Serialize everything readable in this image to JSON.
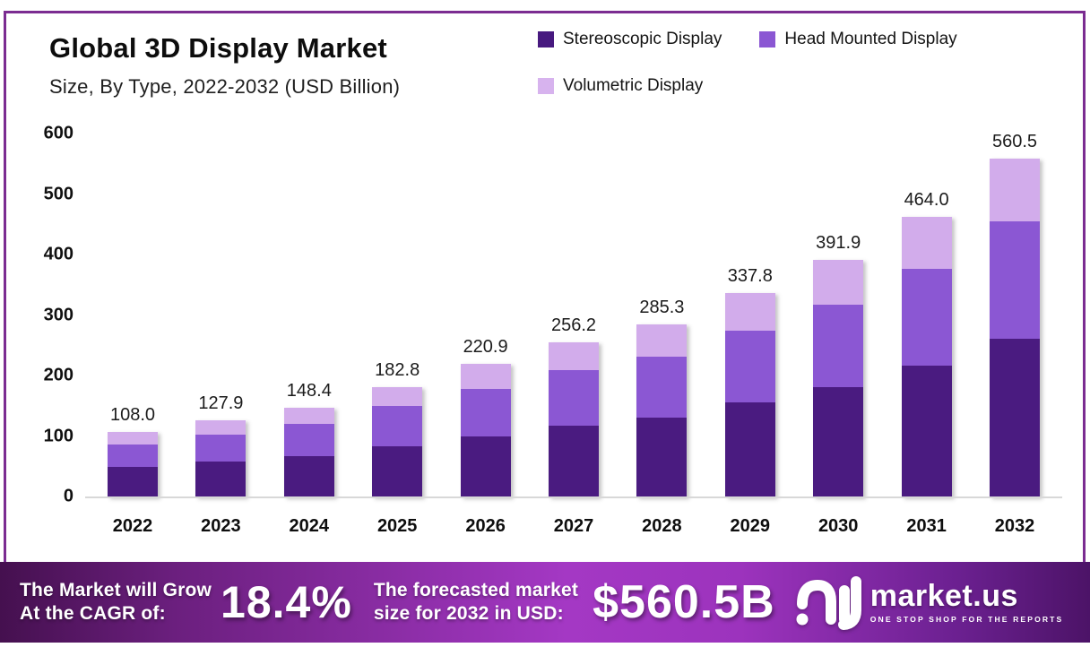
{
  "header": {
    "title": "Global 3D Display Market",
    "subtitle": "Size, By Type, 2022-2032 (USD Billion)"
  },
  "chart_data": {
    "type": "bar",
    "stacked": true,
    "title": "Global 3D Display Market Size, By Type, 2022-2032 (USD Billion)",
    "categories": [
      "2022",
      "2023",
      "2024",
      "2025",
      "2026",
      "2027",
      "2028",
      "2029",
      "2030",
      "2031",
      "2032"
    ],
    "series": [
      {
        "name": "Stereoscopic Display",
        "color": "#4A1B80",
        "values": [
          50.0,
          59.0,
          68.3,
          84.0,
          101.1,
          119.0,
          132.3,
          156.5,
          182.3,
          217.7,
          262.9
        ]
      },
      {
        "name": "Head Mounted Display",
        "color": "#8B57D3",
        "values": [
          37.2,
          45.3,
          53.9,
          66.7,
          78.4,
          90.8,
          100.2,
          118.5,
          136.6,
          160.1,
          194.0
        ]
      },
      {
        "name": "Volumetric Display",
        "color": "#D2ACEB",
        "values": [
          20.8,
          23.6,
          26.2,
          32.1,
          41.4,
          46.4,
          52.8,
          62.8,
          73.0,
          86.2,
          103.6
        ]
      }
    ],
    "totals_labels": [
      "108.0",
      "127.9",
      "148.4",
      "182.8",
      "220.9",
      "256.2",
      "285.3",
      "337.8",
      "391.9",
      "464.0",
      "560.5"
    ],
    "xlabel": "",
    "ylabel": "",
    "ylim": [
      0,
      600
    ],
    "yticks": [
      0,
      100,
      200,
      300,
      400,
      500,
      600
    ],
    "grid": false,
    "legend_position": "top-right"
  },
  "legend": [
    {
      "label": "Stereoscopic Display",
      "color": "#47197F"
    },
    {
      "label": "Head Mounted Display",
      "color": "#8B57D3"
    },
    {
      "label": "Volumetric Display",
      "color": "#D7B3EE"
    }
  ],
  "banner": {
    "cagr_line1": "The Market will Grow",
    "cagr_line2": "At the CAGR of:",
    "cagr_value": "18.4%",
    "forecast_line1": "The forecasted market",
    "forecast_line2": "size for 2032 in USD:",
    "forecast_value": "$560.5B",
    "brand_name": "market.us",
    "brand_tagline": "ONE STOP SHOP FOR THE REPORTS"
  },
  "colors": {
    "frame_border": "#7B2C91",
    "axis_baseline": "#D8D8D8",
    "banner_gradient": [
      "#45104F",
      "#A438C4",
      "#4C1367"
    ],
    "background": "#FFFFFF",
    "text": "#111111"
  }
}
